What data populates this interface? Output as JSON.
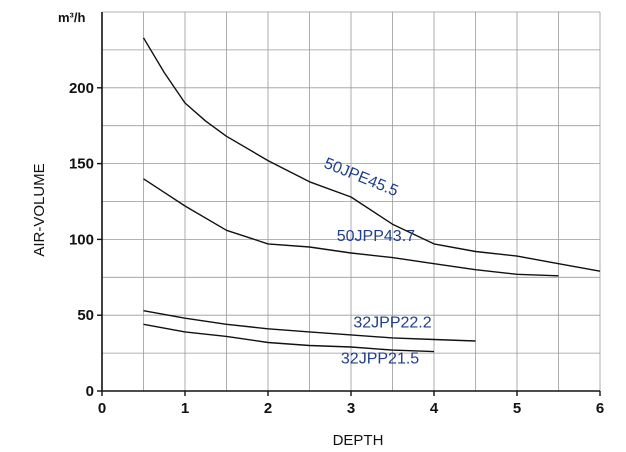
{
  "chart_data": {
    "type": "line",
    "title": "",
    "unit_label": "m³/h",
    "xlabel": "DEPTH",
    "ylabel": "AIR-VOLUME",
    "xlim": [
      0,
      6
    ],
    "ylim": [
      0,
      250
    ],
    "x_ticks": [
      "0",
      "1",
      "2",
      "3",
      "4",
      "5",
      "6"
    ],
    "y_ticks": [
      "0",
      "50",
      "100",
      "150",
      "200"
    ],
    "grid": true,
    "label_color": "#1f3e8c",
    "line_color": "#111111",
    "series": [
      {
        "name": "50JPE45.5",
        "x": [
          0.5,
          0.75,
          1.0,
          1.25,
          1.5,
          2.0,
          2.5,
          3.0,
          3.5,
          4.0,
          4.5,
          5.0,
          5.5,
          6.0
        ],
        "y": [
          233,
          210,
          190,
          178,
          168,
          152,
          138,
          128,
          110,
          97,
          92,
          89,
          84,
          79
        ]
      },
      {
        "name": "50JPP43.7",
        "x": [
          0.5,
          0.75,
          1.0,
          1.5,
          2.0,
          2.5,
          3.0,
          3.5,
          4.0,
          4.5,
          5.0,
          5.5
        ],
        "y": [
          140,
          131,
          122,
          106,
          97,
          95,
          91,
          88,
          84,
          80,
          77,
          76
        ]
      },
      {
        "name": "32JPP22.2",
        "x": [
          0.5,
          1.0,
          1.5,
          2.0,
          2.5,
          3.0,
          3.5,
          4.0,
          4.5
        ],
        "y": [
          53,
          48,
          44,
          41,
          39,
          37,
          35,
          34,
          33
        ]
      },
      {
        "name": "32JPP21.5",
        "x": [
          0.5,
          1.0,
          1.5,
          2.0,
          2.5,
          3.0,
          3.5,
          4.0
        ],
        "y": [
          44,
          39,
          36,
          32,
          30,
          29,
          27,
          26
        ]
      }
    ]
  }
}
